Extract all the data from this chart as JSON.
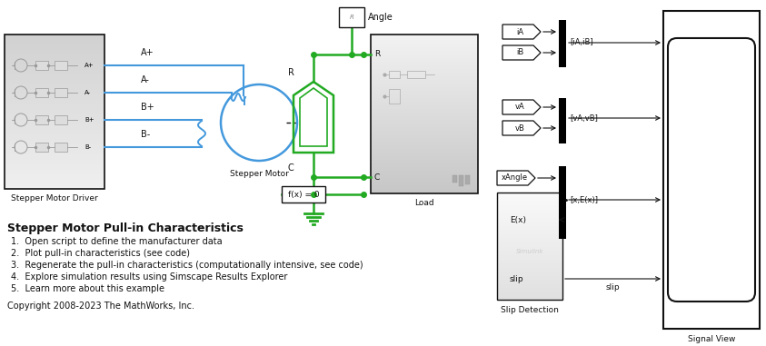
{
  "bg_color": "#ffffff",
  "title": "Stepper Motor Pull-in Characteristics",
  "bullet_items": [
    "1.  Open script to define the manufacturer data",
    "2.  Plot pull-in characteristics (see code)",
    "3.  Regenerate the pull-in characteristics (computationally intensive, see code)",
    "4.  Explore simulation results using Simscape Results Explorer",
    "5.  Learn more about this example"
  ],
  "copyright": "Copyright 2008-2023 The MathWorks, Inc.",
  "blue": "#4499dd",
  "green": "#22aa22",
  "black": "#111111",
  "driver_bg": "#e0e4e8",
  "load_bg": "#d8dce0"
}
